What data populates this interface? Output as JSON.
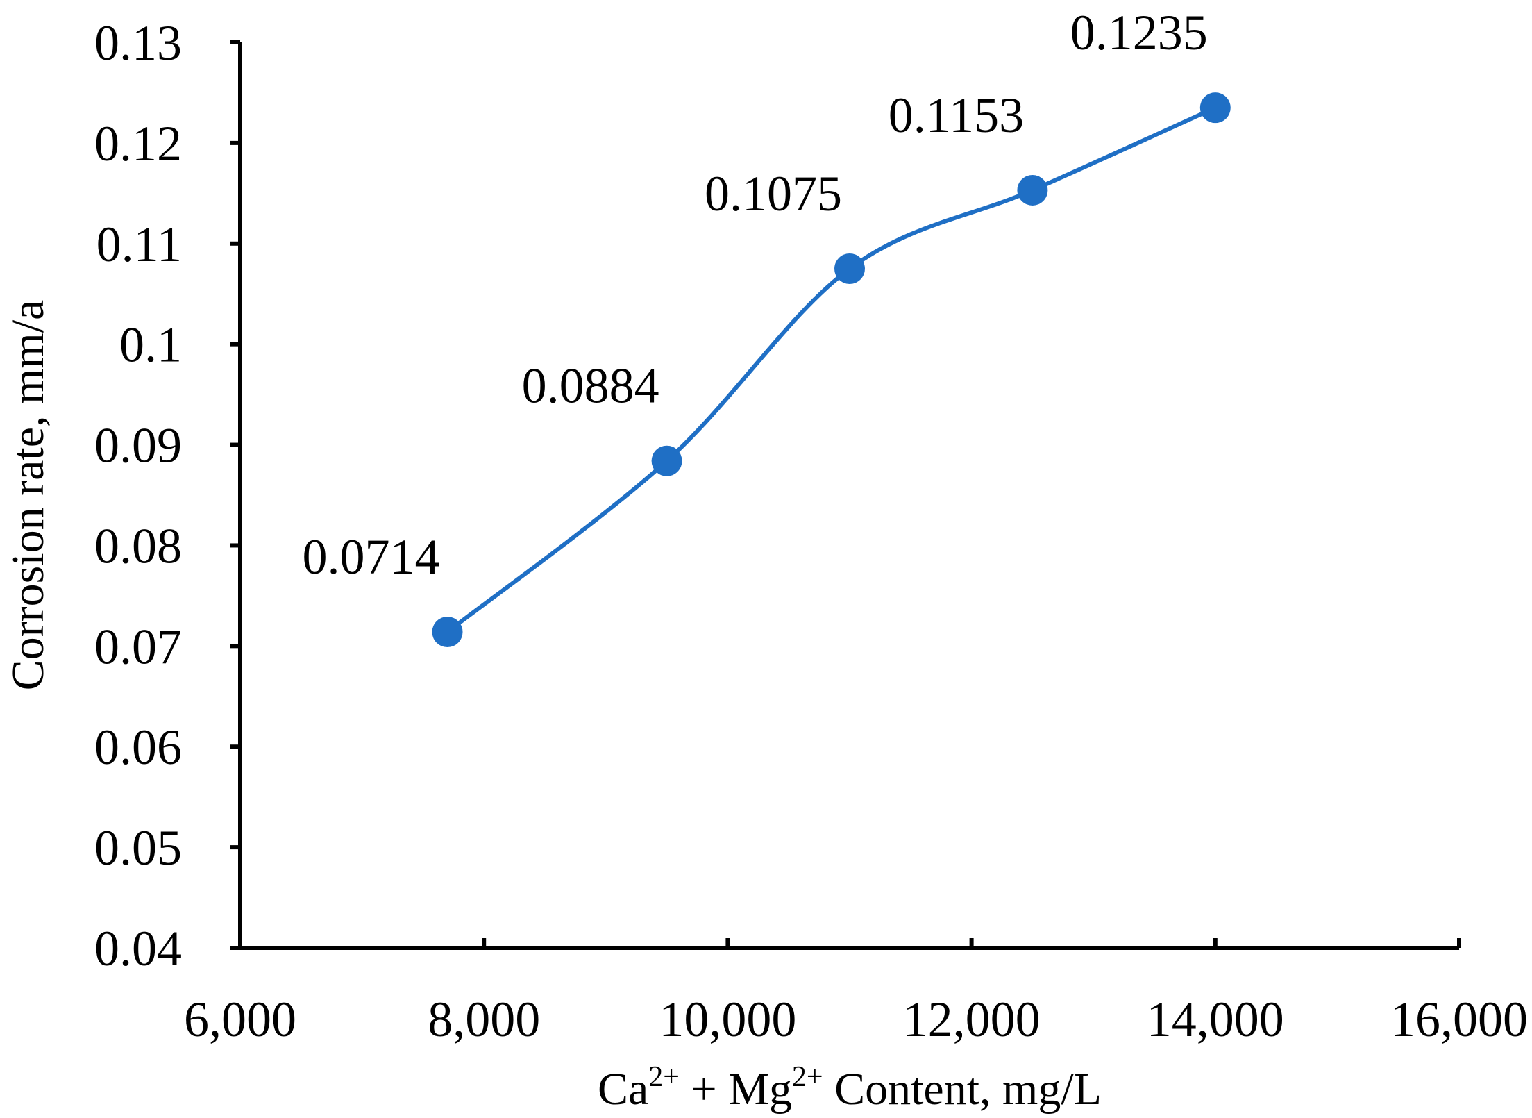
{
  "chart_data": {
    "type": "line",
    "x": [
      7700,
      9500,
      11000,
      12500,
      14000
    ],
    "series": [
      {
        "values": [
          0.0714,
          0.0884,
          0.1075,
          0.1153,
          0.1235
        ],
        "color": "#1f6fc5"
      }
    ],
    "data_labels": [
      "0.0714",
      "0.0884",
      "0.1075",
      "0.1153",
      "0.1235"
    ],
    "xlabel": {
      "pre1": "Ca",
      "sup1": "2+",
      "mid": " + Mg",
      "sup2": "2+",
      "post": " Content, mg/L"
    },
    "ylabel": "Corrosion rate, mm/a",
    "xlim": [
      6000,
      16000
    ],
    "ylim": [
      0.04,
      0.13
    ],
    "x_ticks": [
      6000,
      8000,
      10000,
      12000,
      14000,
      16000
    ],
    "x_tick_labels": [
      "6,000",
      "8,000",
      "10,000",
      "12,000",
      "14,000",
      "16,000"
    ],
    "y_ticks": [
      0.04,
      0.05,
      0.06,
      0.07,
      0.08,
      0.09,
      0.1,
      0.11,
      0.12,
      0.13
    ],
    "y_tick_labels": [
      "0.04",
      "0.05",
      "0.06",
      "0.07",
      "0.08",
      "0.09",
      "0.1",
      "0.11",
      "0.12",
      "0.13"
    ],
    "grid": false,
    "smooth_line": true,
    "markers": "filled-circle"
  }
}
